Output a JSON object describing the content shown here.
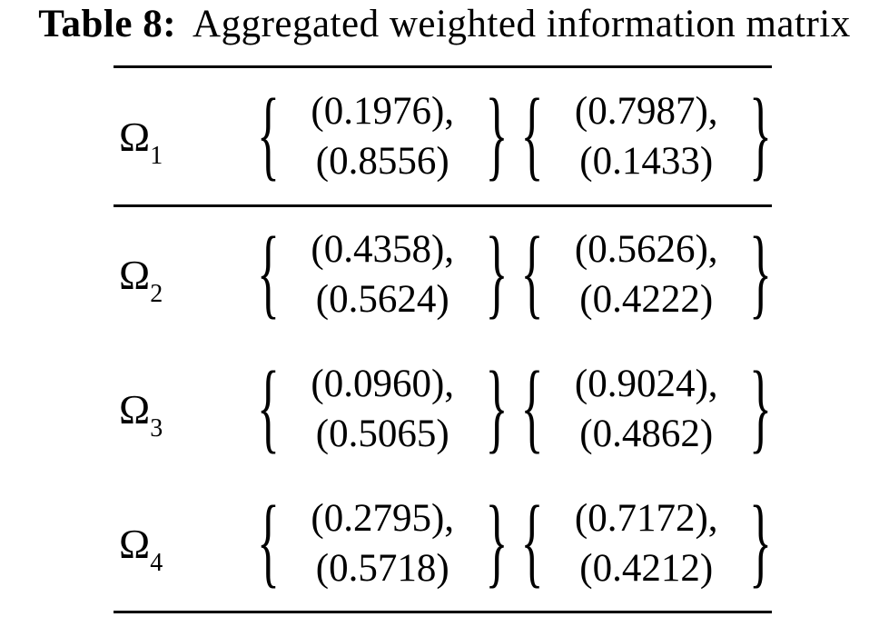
{
  "title": {
    "label": "Table 8:",
    "text": "Aggregated weighted information matrix"
  },
  "symbols": {
    "brace_left": "{",
    "brace_right": "}"
  },
  "colors": {
    "text": "#000000",
    "background": "#ffffff",
    "rule": "#000000"
  },
  "table": {
    "rows": [
      {
        "label_base": "Ω",
        "label_sub": "1",
        "cell1_line1": "(0.1976),",
        "cell1_line2": "(0.8556)",
        "cell2_line1": "(0.7987),",
        "cell2_line2": "(0.1433)"
      },
      {
        "label_base": "Ω",
        "label_sub": "2",
        "cell1_line1": "(0.4358),",
        "cell1_line2": "(0.5624)",
        "cell2_line1": "(0.5626),",
        "cell2_line2": "(0.4222)"
      },
      {
        "label_base": "Ω",
        "label_sub": "3",
        "cell1_line1": "(0.0960),",
        "cell1_line2": "(0.5065)",
        "cell2_line1": "(0.9024),",
        "cell2_line2": "(0.4862)"
      },
      {
        "label_base": "Ω",
        "label_sub": "4",
        "cell1_line1": "(0.2795),",
        "cell1_line2": "(0.5718)",
        "cell2_line1": "(0.7172),",
        "cell2_line2": "(0.4212)"
      }
    ]
  }
}
